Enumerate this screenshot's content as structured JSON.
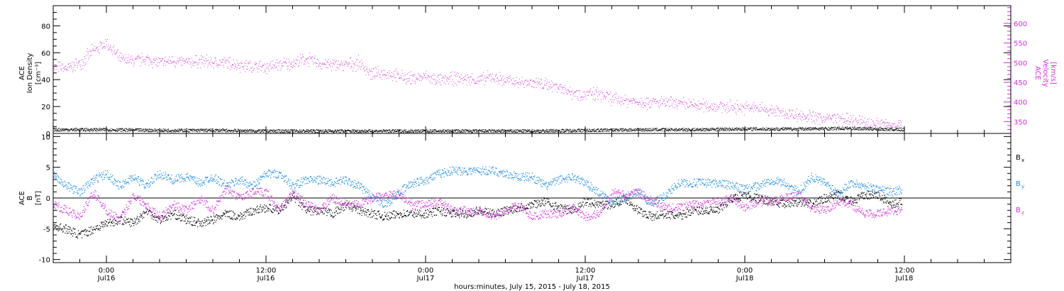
{
  "colors": {
    "density": "#000000",
    "velocity": "#d22ed8",
    "bx": "#000000",
    "by": "#1a8ae6",
    "bz": "#d22ed8"
  },
  "x_axis": {
    "title": "hours:minutes, July 15, 2015 - July 18, 2015",
    "ticks": [
      {
        "hours": 24,
        "time": "0:00",
        "date": "Jul16"
      },
      {
        "hours": 36,
        "time": "12:00",
        "date": "Jul16"
      },
      {
        "hours": 48,
        "time": "0:00",
        "date": "Jul17"
      },
      {
        "hours": 60,
        "time": "12:00",
        "date": "Jul17"
      },
      {
        "hours": 72,
        "time": "0:00",
        "date": "Jul18"
      },
      {
        "hours": 84,
        "time": "12:00",
        "date": "Jul18"
      }
    ]
  },
  "chart_data": [
    {
      "type": "scatter",
      "panel": "top",
      "left_axis": {
        "label_lines": [
          "ACE",
          "Ion Density",
          "[cm⁻³]"
        ],
        "ylim": [
          0,
          95
        ],
        "ticks": [
          0,
          20,
          40,
          60,
          80
        ]
      },
      "right_axis": {
        "label_lines": [
          "ACE",
          "Velocity",
          "[km/s]"
        ],
        "ylim": [
          320,
          645
        ],
        "ticks": [
          350,
          400,
          450,
          500,
          550,
          600
        ]
      },
      "xlim_hours": [
        20,
        92
      ],
      "grid": false,
      "series": [
        {
          "color_key": "velocity",
          "axis": "right",
          "x_hours": [
            20,
            21,
            22,
            23,
            23.5,
            24,
            25,
            26,
            27,
            28,
            29,
            30,
            31,
            32,
            33,
            34,
            35,
            36,
            37,
            38,
            39,
            40,
            41,
            42,
            43,
            44,
            45,
            46,
            47,
            48,
            49,
            50,
            51,
            52,
            53,
            54,
            55,
            56,
            57,
            58,
            59,
            60,
            61,
            62,
            63,
            64,
            65,
            66,
            67,
            68,
            69,
            70,
            71,
            72,
            73,
            74,
            75,
            76,
            77,
            78,
            79,
            80,
            81,
            82,
            83,
            83.8
          ],
          "values": [
            490,
            485,
            500,
            530,
            540,
            550,
            510,
            505,
            510,
            500,
            505,
            500,
            505,
            500,
            500,
            495,
            490,
            490,
            495,
            500,
            510,
            500,
            495,
            495,
            500,
            470,
            475,
            465,
            460,
            465,
            455,
            460,
            460,
            455,
            465,
            455,
            450,
            450,
            445,
            440,
            425,
            420,
            420,
            410,
            405,
            402,
            400,
            398,
            395,
            393,
            392,
            390,
            388,
            386,
            385,
            378,
            372,
            368,
            362,
            360,
            358,
            352,
            348,
            345,
            343,
            342
          ]
        },
        {
          "color_key": "density",
          "axis": "left",
          "x_hours": [
            20,
            24,
            28,
            32,
            36,
            40,
            44,
            48,
            52,
            56,
            60,
            64,
            68,
            72,
            76,
            80,
            84
          ],
          "values": [
            3,
            3,
            2.5,
            2.5,
            2,
            2,
            2,
            2,
            2,
            2,
            2.5,
            3,
            3,
            3.5,
            3.5,
            4,
            3
          ]
        }
      ]
    },
    {
      "type": "scatter",
      "panel": "bottom",
      "left_axis": {
        "label_lines": [
          "ACE",
          "B",
          "[nT]"
        ],
        "ylim": [
          -10.5,
          10.5
        ],
        "ticks": [
          -10,
          -5,
          0,
          5,
          10
        ]
      },
      "xlim_hours": [
        20,
        92
      ],
      "zero_line": true,
      "grid": false,
      "series": [
        {
          "name": "B",
          "sub": "x",
          "color_key": "bx",
          "x_hours": [
            20,
            21,
            22,
            23,
            24,
            25,
            26,
            27,
            28,
            29,
            30,
            31,
            32,
            33,
            34,
            35,
            36,
            37,
            38,
            39,
            40,
            41,
            42,
            43,
            44,
            45,
            46,
            47,
            48,
            49,
            50,
            51,
            52,
            53,
            54,
            55,
            56,
            57,
            58,
            59,
            60,
            61,
            62,
            63,
            64,
            65,
            66,
            67,
            68,
            69,
            70,
            71,
            72,
            73,
            74,
            75,
            76,
            77,
            78,
            79,
            80,
            81,
            82,
            83,
            83.8
          ],
          "values": [
            -4.5,
            -5,
            -6,
            -5,
            -4,
            -3.5,
            -4,
            -2,
            -3.5,
            -2.5,
            -3.5,
            -4,
            -3.5,
            -2.5,
            -3,
            -2,
            -1.5,
            -2,
            0.5,
            -2,
            -2,
            -2.5,
            -1,
            -2,
            -2.5,
            -3,
            -2.5,
            -2.5,
            -2.5,
            -2,
            -2.5,
            -2.5,
            -2,
            -2.5,
            -2,
            -1.5,
            -1,
            -0.5,
            -1.5,
            -2,
            -0.5,
            -1,
            -1,
            0,
            -2,
            -3,
            -2.5,
            -3,
            -2,
            -2,
            -2,
            0,
            0.5,
            0,
            -0.5,
            -1,
            -0.5,
            -1,
            0,
            0.5,
            -0.5,
            0.5,
            0.5,
            -1,
            -0.5
          ]
        },
        {
          "name": "B",
          "sub": "y",
          "color_key": "by",
          "x_hours": [
            20,
            21,
            22,
            23,
            24,
            25,
            26,
            27,
            28,
            29,
            30,
            31,
            32,
            33,
            34,
            35,
            36,
            37,
            38,
            39,
            40,
            41,
            42,
            43,
            44,
            45,
            46,
            47,
            48,
            49,
            50,
            51,
            52,
            53,
            54,
            55,
            56,
            57,
            58,
            59,
            60,
            61,
            62,
            63,
            64,
            65,
            66,
            67,
            68,
            69,
            70,
            71,
            72,
            73,
            74,
            75,
            76,
            77,
            78,
            79,
            80,
            81,
            82,
            83,
            83.8
          ],
          "values": [
            4,
            2,
            1,
            3,
            4,
            2,
            3.5,
            2,
            4,
            3,
            3.5,
            2.5,
            3.5,
            2,
            3,
            2,
            4,
            4,
            2,
            3,
            3,
            2.5,
            3,
            2,
            0,
            -1,
            1,
            2.5,
            3,
            4,
            4.5,
            4.5,
            4.5,
            4.5,
            4,
            3.5,
            3.5,
            2,
            3,
            3.5,
            2.5,
            1,
            -0.5,
            0,
            1,
            -1,
            0.5,
            2.5,
            2.5,
            2.5,
            2.5,
            2,
            1.5,
            2,
            3,
            2.5,
            1,
            3.5,
            2.5,
            1,
            2.5,
            2,
            1.5,
            1,
            1.5
          ]
        },
        {
          "name": "B",
          "sub": "z",
          "color_key": "bz",
          "x_hours": [
            20,
            21,
            22,
            23,
            24,
            25,
            26,
            27,
            28,
            29,
            30,
            31,
            32,
            33,
            34,
            35,
            36,
            37,
            38,
            39,
            40,
            41,
            42,
            43,
            44,
            45,
            46,
            47,
            48,
            49,
            50,
            51,
            52,
            53,
            54,
            55,
            56,
            57,
            58,
            59,
            60,
            61,
            62,
            63,
            64,
            65,
            66,
            67,
            68,
            69,
            70,
            71,
            72,
            73,
            74,
            75,
            76,
            77,
            78,
            79,
            80,
            81,
            82,
            83,
            83.8
          ],
          "values": [
            -1,
            -2,
            -3,
            1,
            -2,
            -3.5,
            0.5,
            -1,
            -3,
            -1,
            -2,
            0,
            -2,
            1.5,
            0,
            1,
            1,
            -2,
            1,
            -1,
            -2,
            0,
            -1,
            -1,
            0,
            0.5,
            0.5,
            -1,
            -1,
            -0.5,
            -2,
            -2,
            -2,
            -3,
            -2,
            -1,
            -3,
            -2.5,
            -2.5,
            -1.5,
            -3,
            -2.5,
            1,
            0.5,
            1,
            -0.5,
            -1.5,
            -1.5,
            -1,
            -1,
            -0.5,
            0,
            -1.5,
            -0.5,
            -0.5,
            0,
            0.5,
            -1.5,
            -2,
            -0.5,
            -1,
            -2.5,
            -2.5,
            -2,
            -2
          ]
        }
      ]
    }
  ]
}
